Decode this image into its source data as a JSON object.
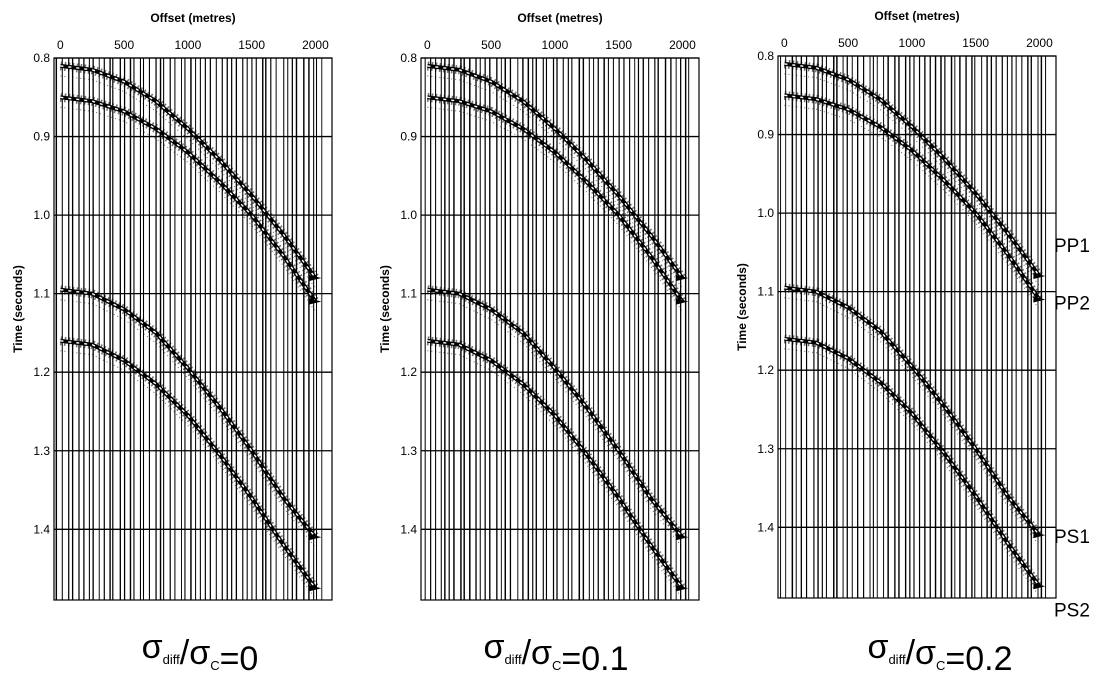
{
  "chart_data": [
    {
      "type": "line",
      "panel": 1,
      "xlabel": "Offset (metres)",
      "ylabel": "Time (seconds)",
      "xlim": [
        -50,
        2130
      ],
      "ylim": [
        1.49,
        0.8
      ],
      "y_inverted": true,
      "x_ticks": [
        0,
        500,
        1000,
        1500,
        2000
      ],
      "y_ticks": [
        0.8,
        0.9,
        1.0,
        1.1,
        1.2,
        1.3,
        1.4
      ],
      "grid": true,
      "caption": {
        "sigma": "σ",
        "diff": "diff",
        "slash": "/",
        "c": "C",
        "rhs": "=0"
      },
      "series": [
        {
          "name": "PP1",
          "x": [
            0,
            250,
            500,
            750,
            1000,
            1250,
            1500,
            1750,
            2000
          ],
          "y": [
            0.81,
            0.815,
            0.83,
            0.855,
            0.89,
            0.93,
            0.975,
            1.025,
            1.08
          ]
        },
        {
          "name": "PP2",
          "x": [
            0,
            250,
            500,
            750,
            1000,
            1250,
            1500,
            1750,
            2000
          ],
          "y": [
            0.85,
            0.855,
            0.868,
            0.89,
            0.92,
            0.958,
            1.0,
            1.052,
            1.11
          ]
        },
        {
          "name": "PS1",
          "x": [
            0,
            250,
            500,
            750,
            1000,
            1250,
            1500,
            1750,
            2000
          ],
          "y": [
            1.095,
            1.1,
            1.12,
            1.15,
            1.195,
            1.245,
            1.3,
            1.36,
            1.41
          ]
        },
        {
          "name": "PS2",
          "x": [
            0,
            250,
            500,
            750,
            1000,
            1250,
            1500,
            1750,
            2000
          ],
          "y": [
            1.16,
            1.165,
            1.185,
            1.215,
            1.255,
            1.305,
            1.36,
            1.42,
            1.475
          ]
        }
      ]
    },
    {
      "type": "line",
      "panel": 2,
      "xlabel": "Offset (metres)",
      "ylabel": "Time (seconds)",
      "xlim": [
        -50,
        2130
      ],
      "ylim": [
        1.49,
        0.8
      ],
      "y_inverted": true,
      "x_ticks": [
        0,
        500,
        1000,
        1500,
        2000
      ],
      "y_ticks": [
        0.8,
        0.9,
        1.0,
        1.1,
        1.2,
        1.3,
        1.4
      ],
      "grid": true,
      "caption": {
        "sigma": "σ",
        "diff": "diff",
        "slash": "/",
        "c": "C",
        "rhs": "=0.1"
      },
      "series": [
        {
          "name": "PP1",
          "x": [
            0,
            250,
            500,
            750,
            1000,
            1250,
            1500,
            1750,
            2000
          ],
          "y": [
            0.81,
            0.815,
            0.83,
            0.855,
            0.89,
            0.93,
            0.975,
            1.025,
            1.08
          ]
        },
        {
          "name": "PP2",
          "x": [
            0,
            250,
            500,
            750,
            1000,
            1250,
            1500,
            1750,
            2000
          ],
          "y": [
            0.85,
            0.855,
            0.868,
            0.89,
            0.92,
            0.958,
            1.0,
            1.052,
            1.11
          ]
        },
        {
          "name": "PS1",
          "x": [
            0,
            250,
            500,
            750,
            1000,
            1250,
            1500,
            1750,
            2000
          ],
          "y": [
            1.095,
            1.1,
            1.12,
            1.15,
            1.195,
            1.245,
            1.3,
            1.36,
            1.41
          ]
        },
        {
          "name": "PS2",
          "x": [
            0,
            250,
            500,
            750,
            1000,
            1250,
            1500,
            1750,
            2000
          ],
          "y": [
            1.16,
            1.165,
            1.185,
            1.215,
            1.255,
            1.305,
            1.36,
            1.42,
            1.475
          ]
        }
      ]
    },
    {
      "type": "line",
      "panel": 3,
      "xlabel": "Offset (metres)",
      "ylabel": "Time (seconds)",
      "xlim": [
        -50,
        2130
      ],
      "ylim": [
        1.49,
        0.8
      ],
      "y_inverted": true,
      "x_ticks": [
        0,
        500,
        1000,
        1500,
        2000
      ],
      "y_ticks": [
        0.8,
        0.9,
        1.0,
        1.1,
        1.2,
        1.3,
        1.4
      ],
      "grid": true,
      "caption": {
        "sigma": "σ",
        "diff": "diff",
        "slash": "/",
        "c": "C",
        "rhs": "=0.2"
      },
      "event_labels": [
        "PP1",
        "PP2",
        "PS1",
        "PS2"
      ],
      "series": [
        {
          "name": "PP1",
          "x": [
            0,
            250,
            500,
            750,
            1000,
            1250,
            1500,
            1750,
            2000
          ],
          "y": [
            0.81,
            0.815,
            0.83,
            0.855,
            0.89,
            0.93,
            0.975,
            1.025,
            1.08
          ]
        },
        {
          "name": "PP2",
          "x": [
            0,
            250,
            500,
            750,
            1000,
            1250,
            1500,
            1750,
            2000
          ],
          "y": [
            0.85,
            0.855,
            0.868,
            0.89,
            0.92,
            0.958,
            1.0,
            1.052,
            1.11
          ]
        },
        {
          "name": "PS1",
          "x": [
            0,
            250,
            500,
            750,
            1000,
            1250,
            1500,
            1750,
            2000
          ],
          "y": [
            1.095,
            1.1,
            1.12,
            1.15,
            1.195,
            1.245,
            1.3,
            1.36,
            1.41
          ]
        },
        {
          "name": "PS2",
          "x": [
            0,
            250,
            500,
            750,
            1000,
            1250,
            1500,
            1750,
            2000
          ],
          "y": [
            1.16,
            1.165,
            1.185,
            1.215,
            1.255,
            1.305,
            1.36,
            1.42,
            1.475
          ]
        }
      ]
    }
  ]
}
